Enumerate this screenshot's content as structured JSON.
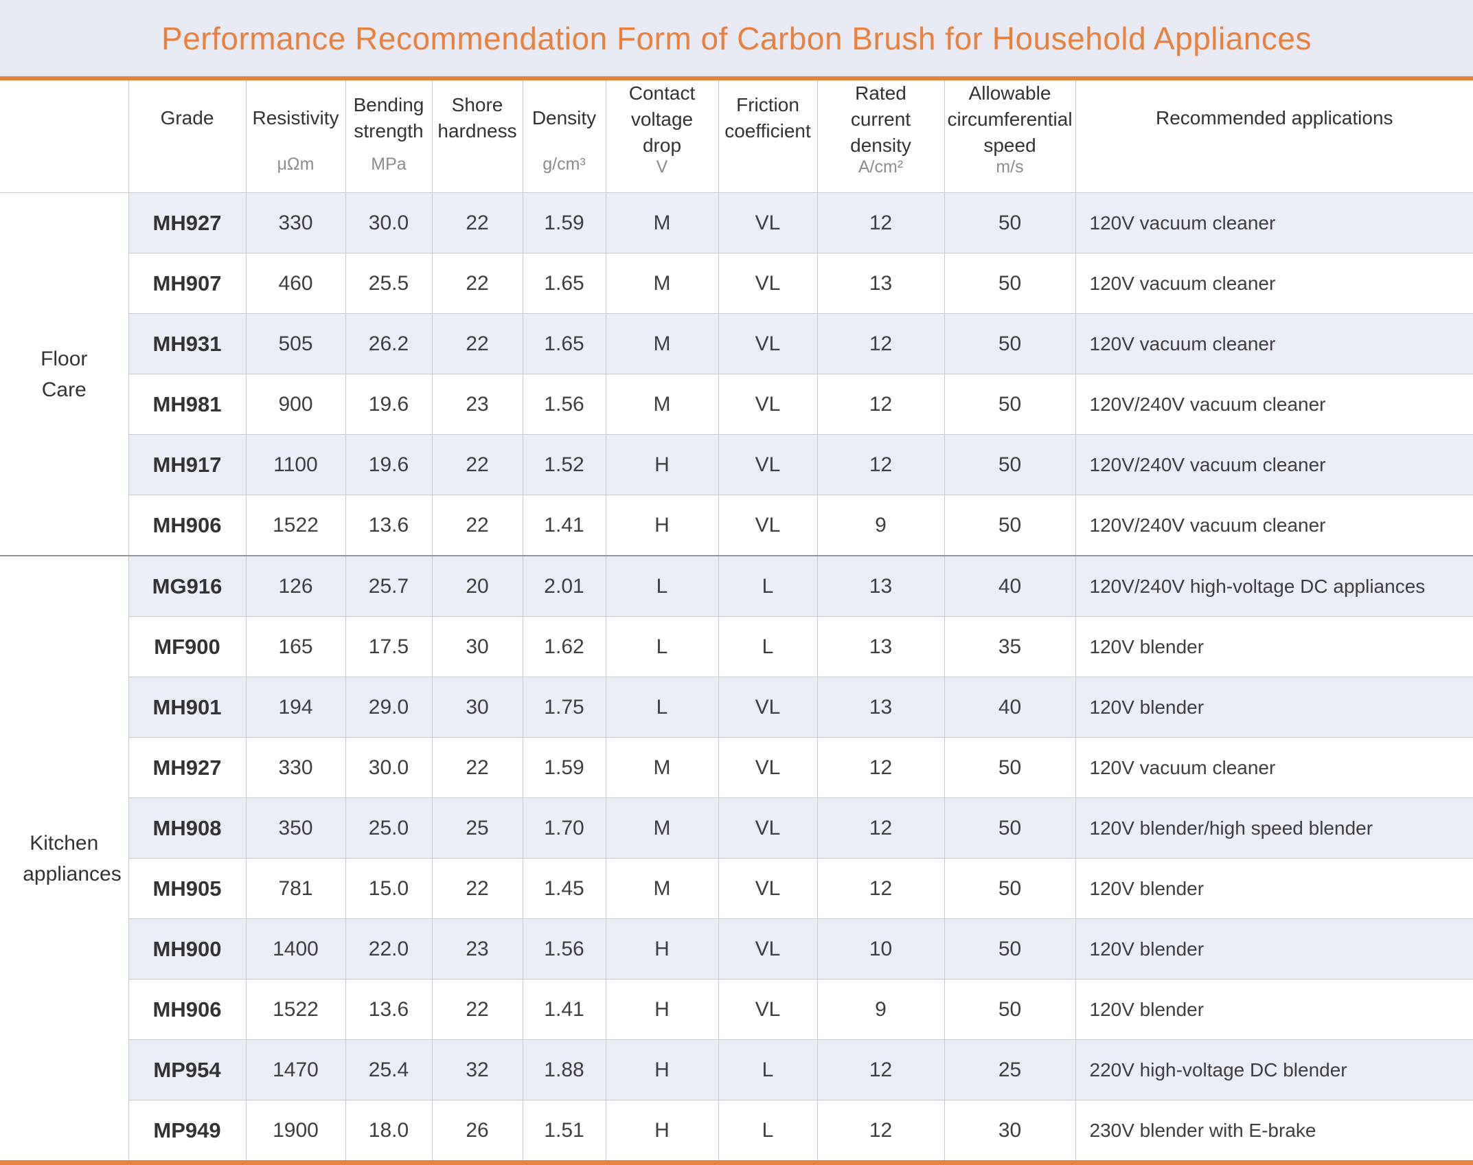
{
  "title": "Performance Recommendation Form of Carbon Brush for Household Appliances",
  "colors": {
    "accent_orange": "#E8803E",
    "title_background": "#E7EAF3",
    "row_shading": "#E9EDF6",
    "gridline": "#C7C9CC",
    "section_divider": "#939598",
    "text": "#3E3E3E"
  },
  "table": {
    "columns": [
      {
        "id": "grade",
        "label": "Grade",
        "unit": ""
      },
      {
        "id": "resistivity",
        "label": "Resistivity",
        "unit": "μΩm"
      },
      {
        "id": "bending_strength",
        "label": "Bending strength",
        "unit": "MPa"
      },
      {
        "id": "shore_hardness",
        "label": "Shore hardness",
        "unit": ""
      },
      {
        "id": "density",
        "label": "Density",
        "unit": "g/cm³"
      },
      {
        "id": "contact_voltage_drop",
        "label": "Contact voltage drop",
        "unit": "V"
      },
      {
        "id": "friction_coefficient",
        "label": "Friction coefficient",
        "unit": ""
      },
      {
        "id": "rated_current_density",
        "label": "Rated current density",
        "unit": "A/cm²"
      },
      {
        "id": "allowable_circumferential_speed",
        "label": "Allowable circumferential speed",
        "unit": "m/s"
      },
      {
        "id": "recommended_applications",
        "label": "Recommended applications",
        "unit": ""
      }
    ],
    "groups": [
      {
        "category": "Floor Care",
        "rows": [
          {
            "grade": "MH927",
            "resistivity": "330",
            "bending_strength": "30.0",
            "shore_hardness": "22",
            "density": "1.59",
            "contact_voltage_drop": "M",
            "friction_coefficient": "VL",
            "rated_current_density": "12",
            "allowable_circumferential_speed": "50",
            "recommended_applications": "120V vacuum cleaner"
          },
          {
            "grade": "MH907",
            "resistivity": "460",
            "bending_strength": "25.5",
            "shore_hardness": "22",
            "density": "1.65",
            "contact_voltage_drop": "M",
            "friction_coefficient": "VL",
            "rated_current_density": "13",
            "allowable_circumferential_speed": "50",
            "recommended_applications": "120V vacuum cleaner"
          },
          {
            "grade": "MH931",
            "resistivity": "505",
            "bending_strength": "26.2",
            "shore_hardness": "22",
            "density": "1.65",
            "contact_voltage_drop": "M",
            "friction_coefficient": "VL",
            "rated_current_density": "12",
            "allowable_circumferential_speed": "50",
            "recommended_applications": "120V vacuum cleaner"
          },
          {
            "grade": "MH981",
            "resistivity": "900",
            "bending_strength": "19.6",
            "shore_hardness": "23",
            "density": "1.56",
            "contact_voltage_drop": "M",
            "friction_coefficient": "VL",
            "rated_current_density": "12",
            "allowable_circumferential_speed": "50",
            "recommended_applications": "120V/240V vacuum cleaner"
          },
          {
            "grade": "MH917",
            "resistivity": "1100",
            "bending_strength": "19.6",
            "shore_hardness": "22",
            "density": "1.52",
            "contact_voltage_drop": "H",
            "friction_coefficient": "VL",
            "rated_current_density": "12",
            "allowable_circumferential_speed": "50",
            "recommended_applications": "120V/240V vacuum cleaner"
          },
          {
            "grade": "MH906",
            "resistivity": "1522",
            "bending_strength": "13.6",
            "shore_hardness": "22",
            "density": "1.41",
            "contact_voltage_drop": "H",
            "friction_coefficient": "VL",
            "rated_current_density": "9",
            "allowable_circumferential_speed": "50",
            "recommended_applications": "120V/240V vacuum cleaner"
          }
        ]
      },
      {
        "category": "Kitchen appliances",
        "rows": [
          {
            "grade": "MG916",
            "resistivity": "126",
            "bending_strength": "25.7",
            "shore_hardness": "20",
            "density": "2.01",
            "contact_voltage_drop": "L",
            "friction_coefficient": "L",
            "rated_current_density": "13",
            "allowable_circumferential_speed": "40",
            "recommended_applications": "120V/240V high-voltage DC appliances"
          },
          {
            "grade": "MF900",
            "resistivity": "165",
            "bending_strength": "17.5",
            "shore_hardness": "30",
            "density": "1.62",
            "contact_voltage_drop": "L",
            "friction_coefficient": "L",
            "rated_current_density": "13",
            "allowable_circumferential_speed": "35",
            "recommended_applications": "120V blender"
          },
          {
            "grade": "MH901",
            "resistivity": "194",
            "bending_strength": "29.0",
            "shore_hardness": "30",
            "density": "1.75",
            "contact_voltage_drop": "L",
            "friction_coefficient": "VL",
            "rated_current_density": "13",
            "allowable_circumferential_speed": "40",
            "recommended_applications": "120V blender"
          },
          {
            "grade": "MH927",
            "resistivity": "330",
            "bending_strength": "30.0",
            "shore_hardness": "22",
            "density": "1.59",
            "contact_voltage_drop": "M",
            "friction_coefficient": "VL",
            "rated_current_density": "12",
            "allowable_circumferential_speed": "50",
            "recommended_applications": "120V vacuum cleaner"
          },
          {
            "grade": "MH908",
            "resistivity": "350",
            "bending_strength": "25.0",
            "shore_hardness": "25",
            "density": "1.70",
            "contact_voltage_drop": "M",
            "friction_coefficient": "VL",
            "rated_current_density": "12",
            "allowable_circumferential_speed": "50",
            "recommended_applications": "120V blender/high speed blender"
          },
          {
            "grade": "MH905",
            "resistivity": "781",
            "bending_strength": "15.0",
            "shore_hardness": "22",
            "density": "1.45",
            "contact_voltage_drop": "M",
            "friction_coefficient": "VL",
            "rated_current_density": "12",
            "allowable_circumferential_speed": "50",
            "recommended_applications": "120V blender"
          },
          {
            "grade": "MH900",
            "resistivity": "1400",
            "bending_strength": "22.0",
            "shore_hardness": "23",
            "density": "1.56",
            "contact_voltage_drop": "H",
            "friction_coefficient": "VL",
            "rated_current_density": "10",
            "allowable_circumferential_speed": "50",
            "recommended_applications": "120V blender"
          },
          {
            "grade": "MH906",
            "resistivity": "1522",
            "bending_strength": "13.6",
            "shore_hardness": "22",
            "density": "1.41",
            "contact_voltage_drop": "H",
            "friction_coefficient": "VL",
            "rated_current_density": "9",
            "allowable_circumferential_speed": "50",
            "recommended_applications": "120V blender"
          },
          {
            "grade": "MP954",
            "resistivity": "1470",
            "bending_strength": "25.4",
            "shore_hardness": "32",
            "density": "1.88",
            "contact_voltage_drop": "H",
            "friction_coefficient": "L",
            "rated_current_density": "12",
            "allowable_circumferential_speed": "25",
            "recommended_applications": "220V high-voltage DC blender"
          },
          {
            "grade": "MP949",
            "resistivity": "1900",
            "bending_strength": "18.0",
            "shore_hardness": "26",
            "density": "1.51",
            "contact_voltage_drop": "H",
            "friction_coefficient": "L",
            "rated_current_density": "12",
            "allowable_circumferential_speed": "30",
            "recommended_applications": "230V blender with E-brake"
          }
        ]
      }
    ]
  }
}
